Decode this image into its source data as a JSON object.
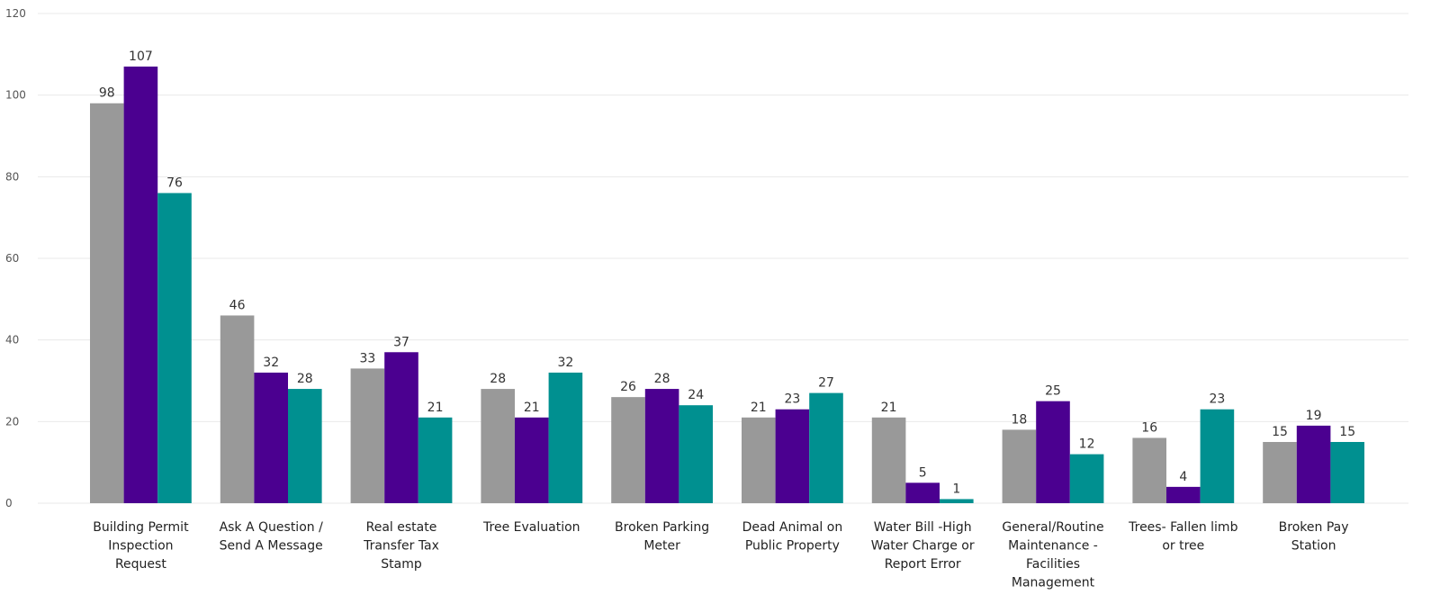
{
  "chart_data": {
    "type": "bar",
    "categories": [
      [
        "Building Permit",
        "Inspection",
        "Request"
      ],
      [
        "Ask A Question /",
        "Send A Message"
      ],
      [
        "Real estate",
        "Transfer Tax",
        "Stamp"
      ],
      [
        "Tree Evaluation"
      ],
      [
        "Broken Parking",
        "Meter"
      ],
      [
        "Dead Animal on",
        "Public Property"
      ],
      [
        "Water Bill -High",
        "Water Charge or",
        "Report Error"
      ],
      [
        "General/Routine",
        "Maintenance -",
        "Facilities",
        "Management"
      ],
      [
        "Trees- Fallen limb",
        "or tree"
      ],
      [
        "Broken Pay",
        "Station"
      ]
    ],
    "series": [
      {
        "color": "#999999",
        "values": [
          98,
          46,
          33,
          28,
          26,
          21,
          21,
          18,
          16,
          15
        ]
      },
      {
        "color": "#4b0090",
        "values": [
          107,
          32,
          37,
          21,
          28,
          23,
          5,
          25,
          4,
          19
        ]
      },
      {
        "color": "#009090",
        "values": [
          76,
          28,
          21,
          32,
          24,
          27,
          1,
          12,
          23,
          15
        ]
      }
    ],
    "y_ticks": [
      0,
      20,
      40,
      60,
      80,
      100,
      120
    ],
    "ylim": [
      0,
      120
    ],
    "grid": true,
    "data_labels": true,
    "legend": "none",
    "title": "",
    "xlabel": "",
    "ylabel": ""
  }
}
